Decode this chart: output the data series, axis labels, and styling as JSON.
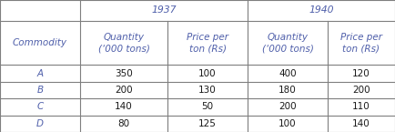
{
  "title_1937": "1937",
  "title_1940": "1940",
  "col_commodity": "Commodity",
  "col_qty": "Quantity\n(‘000 tons)",
  "col_price": "Price per\nton (Rs)",
  "commodities": [
    "A",
    "B",
    "C",
    "D"
  ],
  "qty_1937": [
    350,
    200,
    140,
    80
  ],
  "price_1937": [
    100,
    130,
    50,
    125
  ],
  "qty_1940": [
    400,
    180,
    200,
    100
  ],
  "price_1940": [
    120,
    200,
    110,
    140
  ],
  "bg_color": "#ffffff",
  "border_color": "#7f7f7f",
  "text_color": "#4f5faa",
  "data_color": "#1a1a1a",
  "col_bounds": [
    0,
    88,
    184,
    272,
    360,
    434
  ],
  "row_tops": [
    145,
    122,
    74,
    55,
    37,
    18,
    0
  ],
  "font_size": 7.5,
  "header_font_size": 7.8,
  "line_width": 0.8
}
